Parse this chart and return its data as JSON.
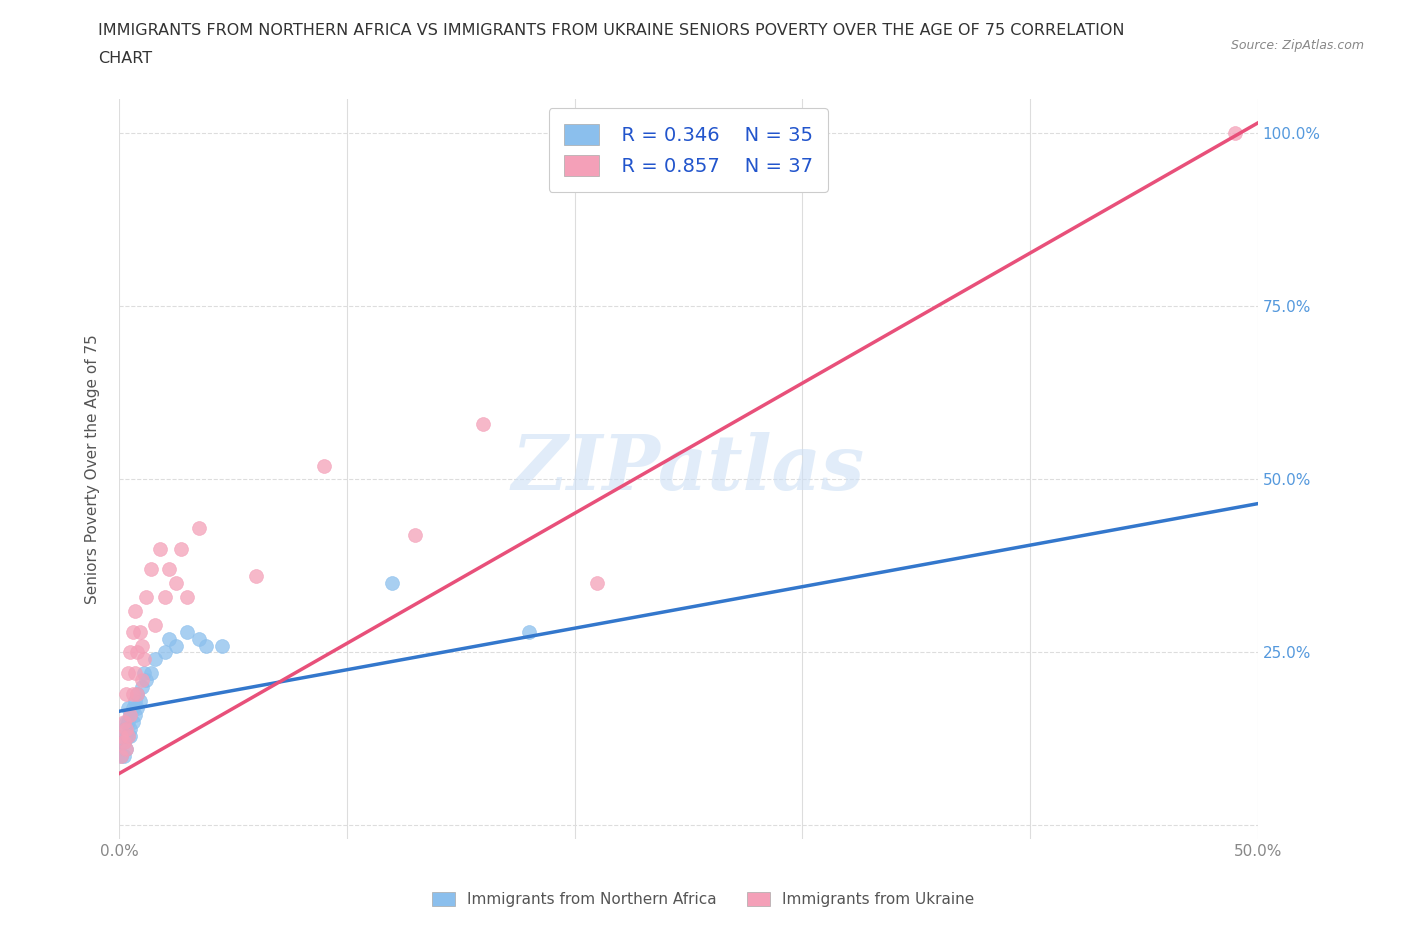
{
  "title_line1": "IMMIGRANTS FROM NORTHERN AFRICA VS IMMIGRANTS FROM UKRAINE SENIORS POVERTY OVER THE AGE OF 75 CORRELATION",
  "title_line2": "CHART",
  "source_text": "Source: ZipAtlas.com",
  "ylabel": "Seniors Poverty Over the Age of 75",
  "xlim": [
    0.0,
    0.5
  ],
  "ylim": [
    -0.02,
    1.05
  ],
  "xticks": [
    0.0,
    0.1,
    0.2,
    0.3,
    0.4,
    0.5
  ],
  "yticks": [
    0.0,
    0.25,
    0.5,
    0.75,
    1.0
  ],
  "xtick_labels": [
    "0.0%",
    "",
    "",
    "",
    "",
    "50.0%"
  ],
  "ytick_right_labels": [
    "",
    "25.0%",
    "50.0%",
    "75.0%",
    "100.0%"
  ],
  "background_color": "#ffffff",
  "grid_color": "#dddddd",
  "watermark": "ZIPatlas",
  "series1_color": "#8bbfed",
  "series2_color": "#f4a0b8",
  "series1_label": "Immigrants from Northern Africa",
  "series2_label": "Immigrants from Ukraine",
  "legend_R1": "R = 0.346",
  "legend_N1": "N = 35",
  "legend_R2": "R = 0.857",
  "legend_N2": "N = 37",
  "legend_color": "#2255cc",
  "series1_x": [
    0.001,
    0.001,
    0.002,
    0.002,
    0.002,
    0.003,
    0.003,
    0.003,
    0.004,
    0.004,
    0.004,
    0.005,
    0.005,
    0.005,
    0.006,
    0.006,
    0.007,
    0.007,
    0.008,
    0.008,
    0.009,
    0.01,
    0.011,
    0.012,
    0.014,
    0.016,
    0.02,
    0.022,
    0.025,
    0.03,
    0.035,
    0.038,
    0.045,
    0.12,
    0.18
  ],
  "series1_y": [
    0.1,
    0.12,
    0.1,
    0.12,
    0.14,
    0.11,
    0.13,
    0.15,
    0.13,
    0.15,
    0.17,
    0.14,
    0.16,
    0.13,
    0.15,
    0.17,
    0.16,
    0.18,
    0.17,
    0.19,
    0.18,
    0.2,
    0.22,
    0.21,
    0.22,
    0.24,
    0.25,
    0.27,
    0.26,
    0.28,
    0.27,
    0.26,
    0.26,
    0.35,
    0.28
  ],
  "series2_x": [
    0.001,
    0.001,
    0.002,
    0.002,
    0.003,
    0.003,
    0.003,
    0.004,
    0.004,
    0.005,
    0.005,
    0.006,
    0.006,
    0.007,
    0.007,
    0.008,
    0.008,
    0.009,
    0.01,
    0.01,
    0.011,
    0.012,
    0.014,
    0.016,
    0.018,
    0.02,
    0.022,
    0.025,
    0.027,
    0.03,
    0.035,
    0.06,
    0.09,
    0.13,
    0.16,
    0.21,
    0.49
  ],
  "series2_y": [
    0.1,
    0.13,
    0.12,
    0.15,
    0.11,
    0.14,
    0.19,
    0.13,
    0.22,
    0.16,
    0.25,
    0.19,
    0.28,
    0.22,
    0.31,
    0.25,
    0.19,
    0.28,
    0.21,
    0.26,
    0.24,
    0.33,
    0.37,
    0.29,
    0.4,
    0.33,
    0.37,
    0.35,
    0.4,
    0.33,
    0.43,
    0.36,
    0.52,
    0.42,
    0.58,
    0.35,
    1.0
  ],
  "trendline1_color": "#3377cc",
  "trendline2_color": "#e8507a",
  "trendline1_intercept": 0.165,
  "trendline1_slope": 0.6,
  "trendline2_intercept": 0.075,
  "trendline2_slope": 1.88
}
